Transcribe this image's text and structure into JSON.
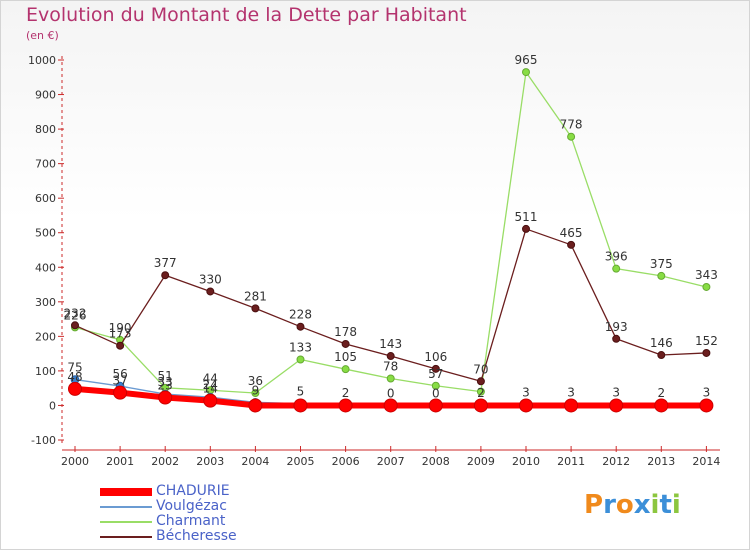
{
  "title": "Evolution du Montant de la Dette par Habitant",
  "subtitle": "(en €)",
  "logo_text": "Proxiti",
  "chart_data": {
    "type": "line",
    "title": "Evolution du Montant de la Dette par Habitant",
    "ylabel": "(en €)",
    "xlabel": "",
    "ylim": [
      -100,
      1000
    ],
    "y_ticks": [
      -100,
      0,
      100,
      200,
      300,
      400,
      500,
      600,
      700,
      800,
      900,
      1000
    ],
    "categories": [
      "2000",
      "2001",
      "2002",
      "2003",
      "2004",
      "2005",
      "2006",
      "2007",
      "2008",
      "2009",
      "2010",
      "2011",
      "2012",
      "2013",
      "2014"
    ],
    "grid": false,
    "legend_position": "bottom-left",
    "series": [
      {
        "name": "CHADURIE",
        "color": "#ff0000",
        "values": [
          48,
          37,
          23,
          14,
          0,
          0,
          0,
          0,
          0,
          0,
          0,
          0,
          0,
          0,
          0
        ],
        "labels_shown": [
          true,
          true,
          true,
          true,
          false,
          false,
          false,
          false,
          false,
          false,
          false,
          false,
          false,
          false,
          false
        ]
      },
      {
        "name": "Voulgézac",
        "color": "#6b9bd2",
        "values": [
          75,
          56,
          33,
          24,
          9,
          5,
          2,
          0,
          0,
          2,
          3,
          3,
          3,
          2,
          3
        ],
        "labels_shown": [
          true,
          true,
          true,
          true,
          true,
          true,
          true,
          true,
          true,
          true,
          true,
          true,
          true,
          true,
          true
        ]
      },
      {
        "name": "Charmant",
        "color": "#99dd66",
        "values": [
          226,
          190,
          51,
          44,
          36,
          133,
          105,
          78,
          57,
          40,
          965,
          778,
          396,
          375,
          343
        ],
        "labels_shown": [
          true,
          true,
          true,
          true,
          true,
          true,
          true,
          true,
          true,
          false,
          true,
          true,
          true,
          true,
          true
        ]
      },
      {
        "name": "Bécheresse",
        "color": "#6b1e1e",
        "values": [
          232,
          173,
          377,
          330,
          281,
          228,
          178,
          143,
          106,
          70,
          511,
          465,
          193,
          146,
          152
        ],
        "labels_shown": [
          true,
          true,
          true,
          true,
          true,
          true,
          true,
          true,
          true,
          true,
          true,
          true,
          true,
          true,
          true
        ]
      }
    ]
  }
}
